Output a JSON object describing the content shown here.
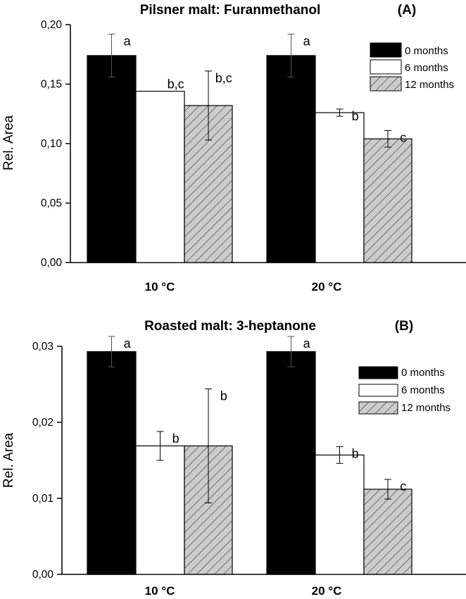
{
  "chart_data": [
    {
      "type": "bar",
      "title": "Pilsner malt: Furanmethanol",
      "panel_label": "(A)",
      "ylabel": "Rel. Area",
      "xlabel": "",
      "categories": [
        "10 °C",
        "20 °C"
      ],
      "ylim": [
        0,
        0.2
      ],
      "yticks": [
        0.0,
        0.05,
        0.1,
        0.15,
        0.2
      ],
      "ytick_labels": [
        "0,00",
        "0,05",
        "0,10",
        "0,15",
        "0,20"
      ],
      "legend_position": "top-right",
      "series": [
        {
          "name": "0 months",
          "fill": "#000000",
          "pattern": "solid",
          "values": [
            0.174,
            0.174
          ],
          "errors": [
            0.018,
            0.018
          ],
          "labels": [
            "a",
            "a"
          ]
        },
        {
          "name": "6 months",
          "fill": "#ffffff",
          "pattern": "solid",
          "values": [
            0.144,
            0.126
          ],
          "errors": [
            0.0,
            0.003
          ],
          "labels": [
            "b,c",
            "b"
          ]
        },
        {
          "name": "12 months",
          "fill": "#cccccc",
          "pattern": "hatch",
          "values": [
            0.132,
            0.104
          ],
          "errors": [
            0.029,
            0.007
          ],
          "labels": [
            "b,c",
            "c"
          ]
        }
      ]
    },
    {
      "type": "bar",
      "title": "Roasted malt: 3-heptanone",
      "panel_label": "(B)",
      "ylabel": "Rel. Area",
      "xlabel": "",
      "categories": [
        "10 °C",
        "20 °C"
      ],
      "ylim": [
        0,
        0.03
      ],
      "yticks": [
        0.0,
        0.01,
        0.02,
        0.03
      ],
      "ytick_labels": [
        "0,00",
        "0,01",
        "0,02",
        "0,03"
      ],
      "legend_position": "top-right",
      "series": [
        {
          "name": "0 months",
          "fill": "#000000",
          "pattern": "solid",
          "values": [
            0.0293,
            0.0293
          ],
          "errors": [
            0.002,
            0.002
          ],
          "labels": [
            "a",
            "a"
          ]
        },
        {
          "name": "6 months",
          "fill": "#ffffff",
          "pattern": "solid",
          "values": [
            0.0169,
            0.0157
          ],
          "errors": [
            0.0019,
            0.0011
          ],
          "labels": [
            "b",
            "b"
          ]
        },
        {
          "name": "12 months",
          "fill": "#cccccc",
          "pattern": "hatch",
          "values": [
            0.0169,
            0.0112
          ],
          "errors": [
            0.0075,
            0.0013
          ],
          "labels": [
            "b",
            "c"
          ]
        }
      ]
    }
  ]
}
